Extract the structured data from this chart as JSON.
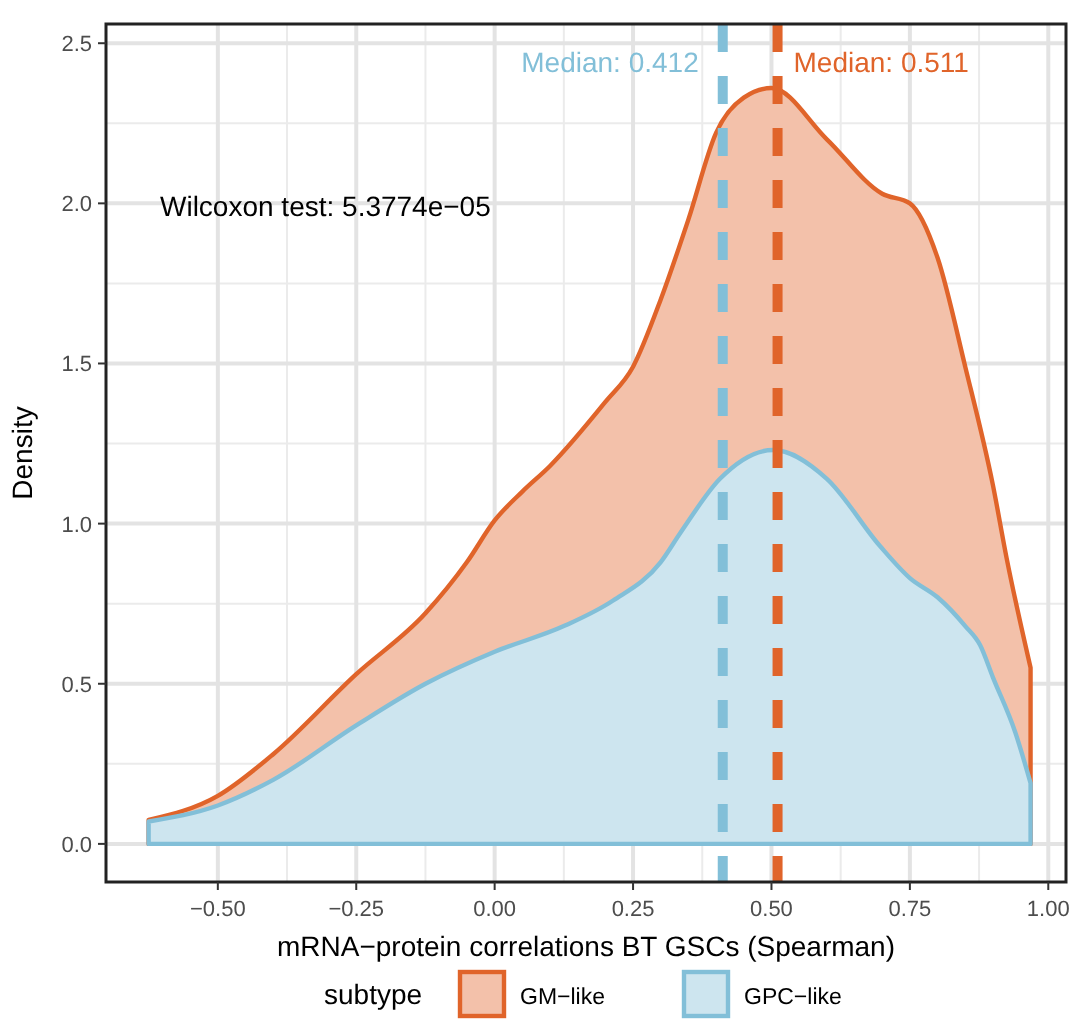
{
  "chart_data": {
    "type": "area",
    "xlabel": "mRNA−protein correlations BT GSCs (Spearman)",
    "ylabel": "Density",
    "legend_title": "subtype",
    "legend": "bottom",
    "grid": true,
    "xlim": [
      -0.702,
      1.032
    ],
    "ylim": [
      -0.119,
      2.56
    ],
    "xticks": [
      {
        "value": -0.5,
        "label": "−0.50"
      },
      {
        "value": -0.25,
        "label": "−0.25"
      },
      {
        "value": 0,
        "label": "0.00"
      },
      {
        "value": 0.25,
        "label": "0.25"
      },
      {
        "value": 0.5,
        "label": "0.50"
      },
      {
        "value": 0.75,
        "label": "0.75"
      },
      {
        "value": 1,
        "label": "1.00"
      }
    ],
    "yticks": [
      {
        "value": 0,
        "label": "0.0"
      },
      {
        "value": 0.5,
        "label": "0.5"
      },
      {
        "value": 1,
        "label": "1.0"
      },
      {
        "value": 1.5,
        "label": "1.5"
      },
      {
        "value": 2,
        "label": "2.0"
      },
      {
        "value": 2.5,
        "label": "2.5"
      }
    ],
    "series": [
      {
        "name": "GM−like",
        "color": "#e0642a",
        "x": [
          -0.625,
          -0.5,
          -0.4,
          -0.25,
          -0.125,
          -0.05,
          0,
          0.05,
          0.1,
          0.2,
          0.25,
          0.3,
          0.35,
          0.4,
          0.45,
          0.5,
          0.6,
          0.7,
          0.75,
          0.8,
          0.85,
          0.9,
          0.925,
          0.968
        ],
        "values": [
          0.075,
          0.15,
          0.28,
          0.53,
          0.72,
          0.88,
          1.01,
          1.1,
          1.18,
          1.38,
          1.49,
          1.7,
          1.95,
          2.22,
          2.33,
          2.36,
          2.2,
          2.03,
          2.0,
          1.83,
          1.49,
          1.12,
          0.89,
          0.55
        ]
      },
      {
        "name": "GPC−like",
        "color": "#82bfd8",
        "x": [
          -0.625,
          -0.5,
          -0.4,
          -0.25,
          -0.125,
          0,
          0.125,
          0.214,
          0.3,
          0.335,
          0.407,
          0.503,
          0.6,
          0.696,
          0.75,
          0.8,
          0.85,
          0.877,
          0.9,
          0.94,
          0.968
        ],
        "values": [
          0.07,
          0.12,
          0.2,
          0.37,
          0.5,
          0.6,
          0.68,
          0.76,
          0.88,
          0.97,
          1.14,
          1.23,
          1.14,
          0.93,
          0.83,
          0.77,
          0.68,
          0.62,
          0.52,
          0.35,
          0.19
        ]
      }
    ],
    "ref_lines": [
      {
        "axis": "x",
        "value": 0.412,
        "label": "Median: 0.412",
        "color": "#82bfd8",
        "line_style": "dashed"
      },
      {
        "axis": "x",
        "value": 0.511,
        "label": "Median: 0.511",
        "color": "#e0642a",
        "line_style": "dashed"
      }
    ],
    "annotations": [
      "Wilcoxon test: 5.3774e−05"
    ]
  }
}
